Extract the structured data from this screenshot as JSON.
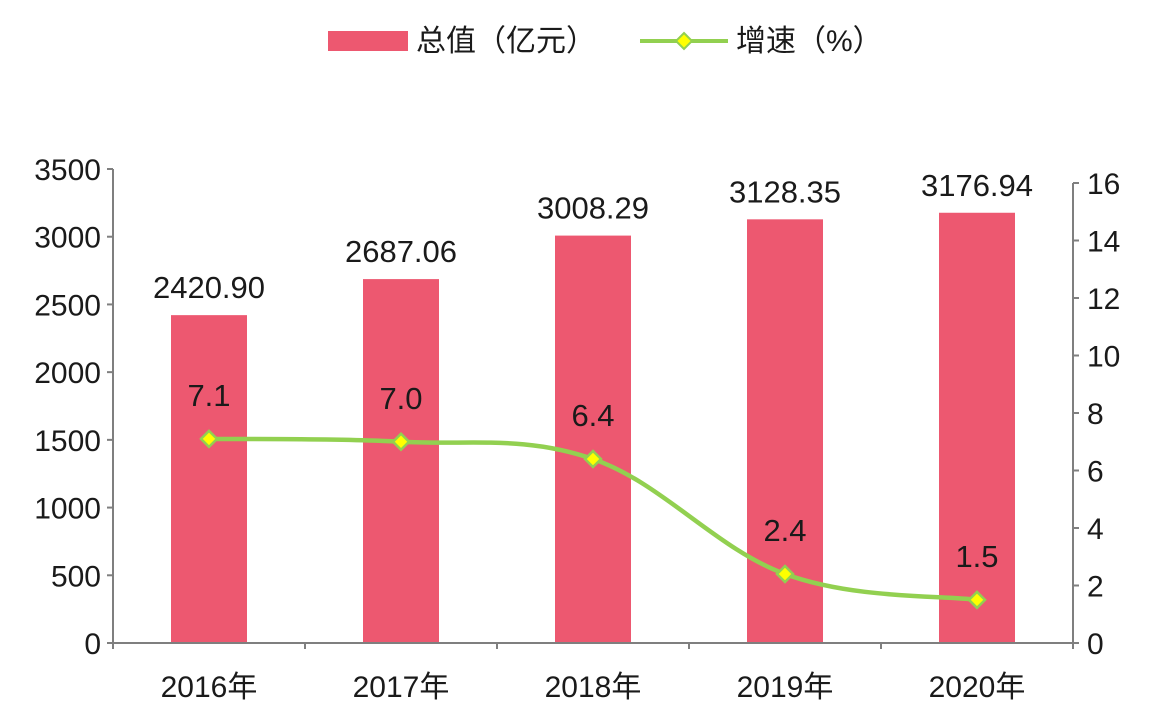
{
  "chart_data": {
    "type": "bar+line",
    "categories": [
      "2016年",
      "2017年",
      "2018年",
      "2019年",
      "2020年"
    ],
    "series": [
      {
        "name": "总值（亿元）",
        "type": "bar",
        "axis": "left",
        "values": [
          2420.9,
          2687.06,
          3008.29,
          3128.35,
          3176.94
        ],
        "labels": [
          "2420.90",
          "2687.06",
          "3008.29",
          "3128.35",
          "3176.94"
        ],
        "color": "#ed5870"
      },
      {
        "name": "增速（%）",
        "type": "line",
        "axis": "right",
        "values": [
          7.1,
          7.0,
          6.4,
          2.4,
          1.5
        ],
        "labels": [
          "7.1",
          "7.0",
          "6.4",
          "2.4",
          "1.5"
        ],
        "color": "#92d050",
        "marker_color": "#ffff00"
      }
    ],
    "y_left": {
      "ylim": [
        0,
        3500
      ],
      "ticks": [
        0,
        500,
        1000,
        1500,
        2000,
        2500,
        3000,
        3500
      ],
      "tick_labels": [
        "0",
        "500",
        "1000",
        "1500",
        "2000",
        "2500",
        "3000",
        "3500"
      ]
    },
    "y_right": {
      "ylim": [
        0,
        16
      ],
      "ticks": [
        0,
        2,
        4,
        6,
        8,
        10,
        12,
        14,
        16
      ],
      "tick_labels": [
        "0",
        "2",
        "4",
        "6",
        "8",
        "10",
        "12",
        "14",
        "16"
      ]
    },
    "legend": {
      "placement": "top-center"
    },
    "grid": false
  }
}
